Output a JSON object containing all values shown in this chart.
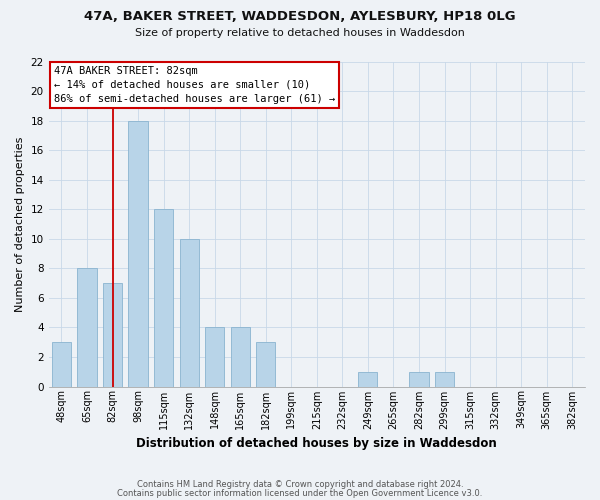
{
  "title_line1": "47A, BAKER STREET, WADDESDON, AYLESBURY, HP18 0LG",
  "title_line2": "Size of property relative to detached houses in Waddesdon",
  "xlabel": "Distribution of detached houses by size in Waddesdon",
  "ylabel": "Number of detached properties",
  "bins": [
    "48sqm",
    "65sqm",
    "82sqm",
    "98sqm",
    "115sqm",
    "132sqm",
    "148sqm",
    "165sqm",
    "182sqm",
    "199sqm",
    "215sqm",
    "232sqm",
    "249sqm",
    "265sqm",
    "282sqm",
    "299sqm",
    "315sqm",
    "332sqm",
    "349sqm",
    "365sqm",
    "382sqm"
  ],
  "counts": [
    3,
    8,
    7,
    18,
    12,
    10,
    4,
    4,
    3,
    0,
    0,
    0,
    1,
    0,
    1,
    1,
    0,
    0,
    0,
    0,
    0
  ],
  "bar_color": "#b8d4e8",
  "bar_edge_color": "#8ab4d0",
  "marker_index": 2,
  "marker_color": "#cc0000",
  "ylim": [
    0,
    22
  ],
  "yticks": [
    0,
    2,
    4,
    6,
    8,
    10,
    12,
    14,
    16,
    18,
    20,
    22
  ],
  "annotation_title": "47A BAKER STREET: 82sqm",
  "annotation_line1": "← 14% of detached houses are smaller (10)",
  "annotation_line2": "86% of semi-detached houses are larger (61) →",
  "annotation_box_color": "#ffffff",
  "annotation_box_edge": "#cc0000",
  "footnote1": "Contains HM Land Registry data © Crown copyright and database right 2024.",
  "footnote2": "Contains public sector information licensed under the Open Government Licence v3.0.",
  "grid_color": "#c8d8e8",
  "background_color": "#eef2f6"
}
